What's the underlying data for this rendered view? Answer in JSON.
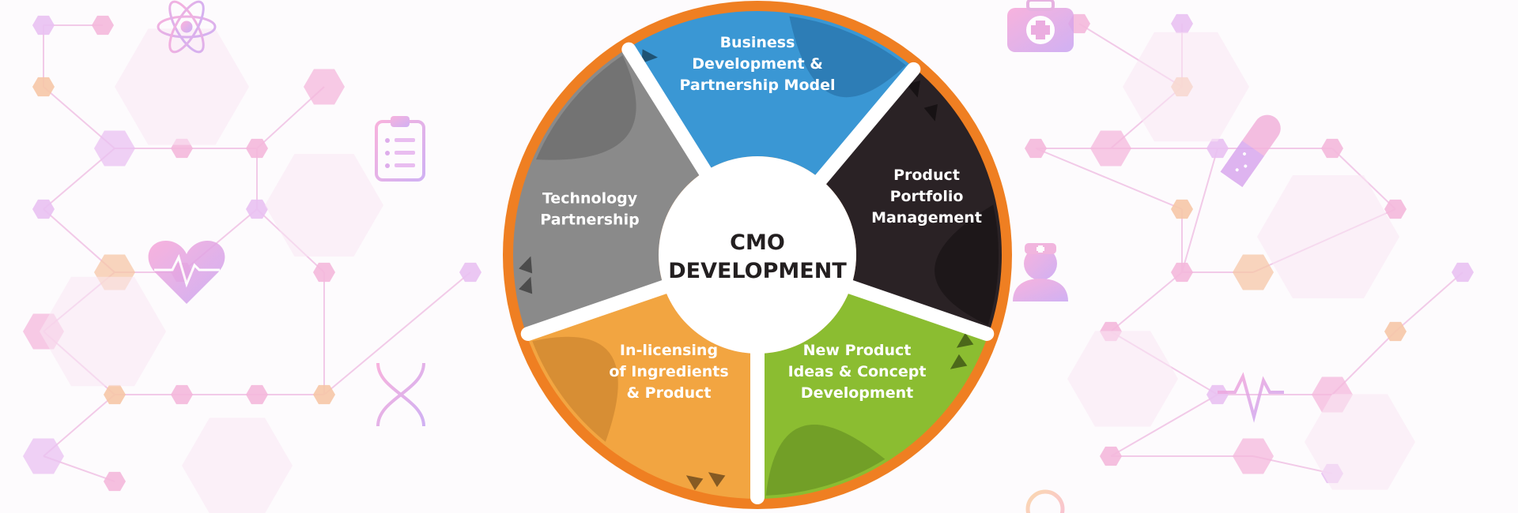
{
  "center": {
    "line1": "CMO",
    "line2": "DEVELOPMENT"
  },
  "segments": [
    {
      "lines": [
        "Business",
        "Development &",
        "Partnership Model"
      ],
      "color": "#3a97d4",
      "shade": "#2c7ab3",
      "icon": "triangle-arrow-icon"
    },
    {
      "lines": [
        "Product",
        "Portfolio",
        "Management"
      ],
      "color": "#2a2225",
      "shade": "#1c1618",
      "icon": "triangle-arrow-icon"
    },
    {
      "lines": [
        "New Product",
        "Ideas & Concept",
        "Development"
      ],
      "color": "#8bbd31",
      "shade": "#6f9b27",
      "icon": "triangle-arrow-icon"
    },
    {
      "lines": [
        "In-licensing",
        "of Ingredients",
        "& Product"
      ],
      "color": "#f2a541",
      "shade": "#d48c33",
      "icon": "triangle-arrow-icon"
    },
    {
      "lines": [
        "Technology",
        "Partnership"
      ],
      "color": "#8a8a8a",
      "shade": "#707070",
      "icon": "triangle-arrow-icon"
    }
  ],
  "colors": {
    "ring": "#ef7f22",
    "divider": "#ffffff",
    "center_fill": "#ffffff",
    "center_text": "#231f20"
  },
  "background_icons": [
    "atom-icon",
    "clipboard-icon",
    "heart-pulse-icon",
    "dna-icon",
    "first-aid-kit-icon",
    "pill-capsule-icon",
    "doctor-icon",
    "pulse-line-icon",
    "stethoscope-icon"
  ]
}
